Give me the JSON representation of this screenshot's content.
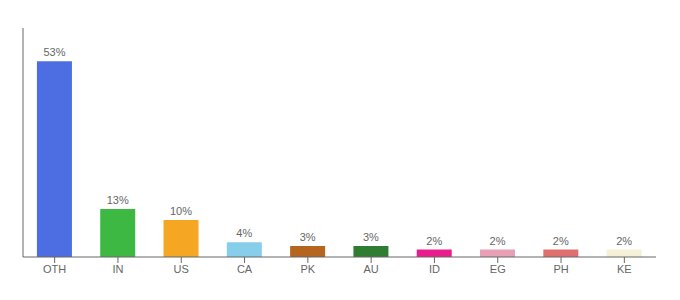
{
  "chart_data": {
    "type": "bar",
    "categories": [
      "OTH",
      "IN",
      "US",
      "CA",
      "PK",
      "AU",
      "ID",
      "EG",
      "PH",
      "KE"
    ],
    "values": [
      53,
      13,
      10,
      4,
      3,
      3,
      2,
      2,
      2,
      2
    ],
    "value_labels": [
      "53%",
      "13%",
      "10%",
      "4%",
      "3%",
      "3%",
      "2%",
      "2%",
      "2%",
      "2%"
    ],
    "data_labels": true,
    "colors": [
      "#4d6ee3",
      "#3cb843",
      "#f5a623",
      "#87ceeb",
      "#b5651d",
      "#2e7d32",
      "#e91e8c",
      "#e8a0b4",
      "#e07070",
      "#f5f0d8"
    ],
    "ylim": [
      0,
      62
    ],
    "grid": false,
    "tick_labels": "x"
  }
}
